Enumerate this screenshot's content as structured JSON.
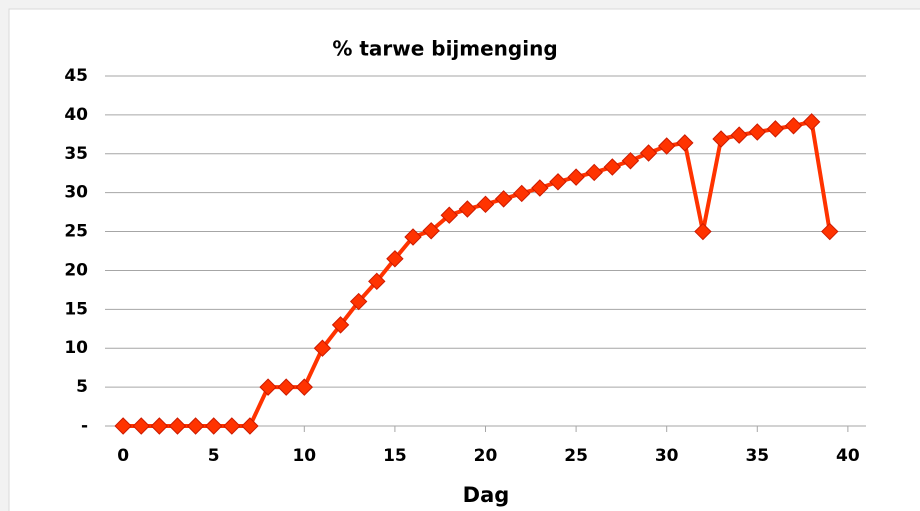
{
  "chart_data": {
    "type": "line",
    "title": "% tarwe bijmenging",
    "x_label": "Dag",
    "x": [
      0,
      1,
      2,
      3,
      4,
      5,
      6,
      7,
      8,
      9,
      10,
      11,
      12,
      13,
      14,
      15,
      16,
      17,
      18,
      19,
      20,
      21,
      22,
      23,
      24,
      25,
      26,
      27,
      28,
      29,
      30,
      31,
      32,
      33,
      34,
      35,
      36,
      37,
      38,
      39
    ],
    "series": [
      {
        "name": "% tarwe bijmenging",
        "color": "#ff3300",
        "values": [
          0,
          0,
          0,
          0,
          0,
          0,
          0,
          0,
          5,
          5,
          5,
          10,
          13,
          16,
          18.6,
          21.5,
          24.3,
          25.1,
          27.1,
          27.9,
          28.5,
          29.2,
          29.9,
          30.6,
          31.4,
          32,
          32.6,
          33.3,
          34.1,
          35.1,
          36,
          36.4,
          25,
          36.9,
          37.4,
          37.8,
          38.2,
          38.6,
          39.1,
          25
        ]
      }
    ],
    "xlim": [
      -1,
      41
    ],
    "xticks": [
      0,
      5,
      10,
      15,
      20,
      25,
      30,
      35,
      40
    ],
    "ylim": [
      0,
      45
    ],
    "yticks": [
      {
        "value": 0,
        "label": "-"
      },
      5,
      10,
      15,
      20,
      25,
      30,
      35,
      40,
      45
    ],
    "grid": true
  }
}
